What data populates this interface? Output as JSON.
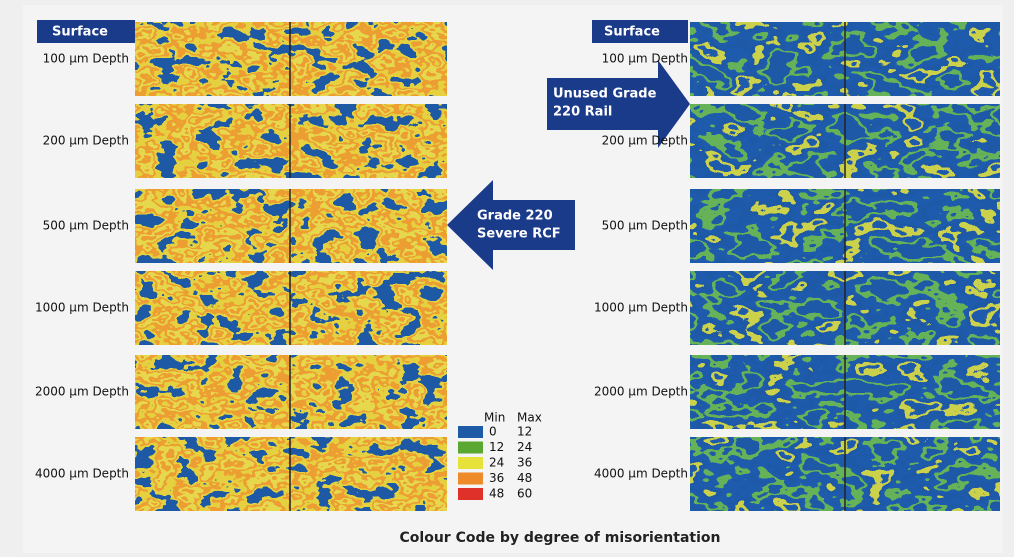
{
  "left_panel": {
    "surface_label": "Surface",
    "depth_labels": [
      "100 μm Depth",
      "200 μm Depth",
      "500 μm Depth",
      "1000 μm Depth",
      "2000 μm Depth",
      "4000 μm Depth"
    ]
  },
  "right_panel": {
    "surface_label": "Surface",
    "depth_labels": [
      "100 μm Depth",
      "200 μm Depth",
      "500 μm Depth",
      "1000 μm Depth",
      "2000 μm Depth",
      "4000 μm Depth"
    ]
  },
  "arrows": [
    {
      "lines": [
        "Unused Grade",
        "220 Rail"
      ]
    },
    {
      "lines": [
        "Grade 220",
        "Severe RCF"
      ]
    }
  ],
  "legend": {
    "min_header": "Min",
    "max_header": "Max",
    "rows": [
      {
        "min": 0,
        "max": 12,
        "color": "#1f5aa6"
      },
      {
        "min": 12,
        "max": 24,
        "color": "#5aa832"
      },
      {
        "min": 24,
        "max": 36,
        "color": "#e6e23a"
      },
      {
        "min": 36,
        "max": 48,
        "color": "#ee8a2a"
      },
      {
        "min": 48,
        "max": 60,
        "color": "#e0302a"
      }
    ]
  },
  "caption": "Colour Code by degree of misorientation"
}
